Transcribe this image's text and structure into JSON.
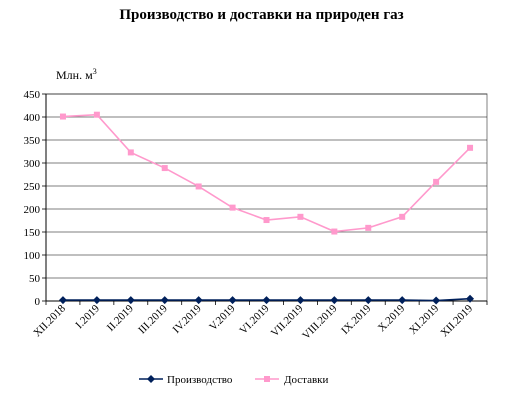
{
  "chart_data": {
    "type": "line",
    "title": "Производство и доставки на природен газ",
    "ylabel": "Млн. м",
    "ylabel_sup": "3",
    "ylim": [
      0,
      450
    ],
    "yticks": [
      0,
      50,
      100,
      150,
      200,
      250,
      300,
      350,
      400,
      450
    ],
    "categories": [
      "XII.2018",
      "I.2019",
      "II.2019",
      "III.2019",
      "IV.2019",
      "V.2019",
      "VI.2019",
      "VII.2019",
      "VIII.2019",
      "IX.2019",
      "X.2019",
      "XI.2019",
      "XII.2019"
    ],
    "grid": true,
    "legend_position": "bottom",
    "series": [
      {
        "name": "Производство",
        "color": "#00205B",
        "marker": "diamond",
        "values": [
          2,
          2,
          2,
          2,
          2,
          2,
          2,
          2,
          2,
          2,
          2,
          1,
          5
        ]
      },
      {
        "name": "Доставки",
        "color": "#FF99CC",
        "marker": "square",
        "values": [
          401,
          405,
          323,
          289,
          249,
          203,
          176,
          183,
          151,
          159,
          183,
          259,
          333
        ]
      }
    ]
  }
}
